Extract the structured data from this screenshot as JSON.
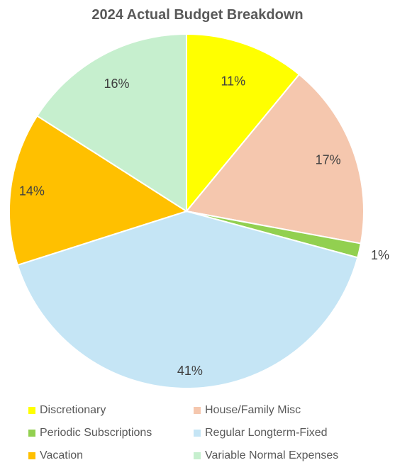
{
  "chart_data": {
    "type": "pie",
    "title": "2024 Actual Budget Breakdown",
    "legend_position": "bottom",
    "slices": [
      {
        "name": "Discretionary",
        "value": 11,
        "label": "11%",
        "color": "#FFFF00"
      },
      {
        "name": "House/Family Misc",
        "value": 17,
        "label": "17%",
        "color": "#F5C7AE"
      },
      {
        "name": "Periodic Subscriptions",
        "value": 1.3,
        "label": "1%",
        "color": "#92D050"
      },
      {
        "name": "Regular Longterm-Fixed",
        "value": 41,
        "label": "41%",
        "color": "#C5E5F5"
      },
      {
        "name": "Vacation",
        "value": 14,
        "label": "14%",
        "color": "#FFC000"
      },
      {
        "name": "Variable Normal Expenses",
        "value": 16,
        "label": "16%",
        "color": "#C6EFCE"
      }
    ]
  }
}
